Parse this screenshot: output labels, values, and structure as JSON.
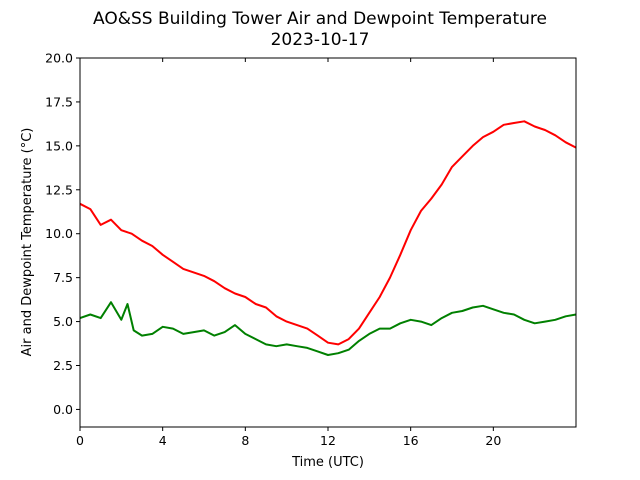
{
  "chart_data": {
    "type": "line",
    "title": "AO&SS Building Tower Air and Dewpoint Temperature",
    "subtitle": "2023-10-17",
    "xlabel": "Time (UTC)",
    "ylabel": "Air and Dewpoint Temperature (°C)",
    "xlim": [
      0,
      24
    ],
    "ylim": [
      -1,
      20
    ],
    "xticks": [
      0,
      4,
      8,
      12,
      16,
      20
    ],
    "yticks": [
      0.0,
      2.5,
      5.0,
      7.5,
      10.0,
      12.5,
      15.0,
      17.5,
      20.0
    ],
    "grid": false,
    "series": [
      {
        "color": "#ff0000",
        "x": [
          0,
          0.5,
          1.0,
          1.5,
          2.0,
          2.5,
          3.0,
          3.5,
          4.0,
          4.5,
          5.0,
          5.5,
          6.0,
          6.5,
          7.0,
          7.5,
          8.0,
          8.5,
          9.0,
          9.5,
          10.0,
          10.5,
          11.0,
          11.5,
          12.0,
          12.5,
          13.0,
          13.5,
          14.0,
          14.5,
          15.0,
          15.5,
          16.0,
          16.5,
          17.0,
          17.5,
          18.0,
          18.5,
          19.0,
          19.5,
          20.0,
          20.5,
          21.0,
          21.5,
          22.0,
          22.5,
          23.0,
          23.5,
          24.0
        ],
        "values": [
          11.7,
          11.4,
          10.5,
          10.8,
          10.2,
          10.0,
          9.6,
          9.3,
          8.8,
          8.4,
          8.0,
          7.8,
          7.6,
          7.3,
          6.9,
          6.6,
          6.4,
          6.0,
          5.8,
          5.3,
          5.0,
          4.8,
          4.6,
          4.2,
          3.8,
          3.7,
          4.0,
          4.6,
          5.5,
          6.4,
          7.5,
          8.8,
          10.2,
          11.3,
          12.0,
          12.8,
          13.8,
          14.4,
          15.0,
          15.5,
          15.8,
          16.2,
          16.3,
          16.4,
          16.1,
          15.9,
          15.6,
          15.2,
          14.9
        ]
      },
      {
        "color": "#008000",
        "x": [
          0,
          0.5,
          1.0,
          1.5,
          2.0,
          2.3,
          2.6,
          3.0,
          3.5,
          4.0,
          4.5,
          5.0,
          5.5,
          6.0,
          6.5,
          7.0,
          7.5,
          8.0,
          8.5,
          9.0,
          9.5,
          10.0,
          10.5,
          11.0,
          11.5,
          12.0,
          12.5,
          13.0,
          13.5,
          14.0,
          14.5,
          15.0,
          15.5,
          16.0,
          16.5,
          17.0,
          17.5,
          18.0,
          18.5,
          19.0,
          19.5,
          20.0,
          20.5,
          21.0,
          21.5,
          22.0,
          22.5,
          23.0,
          23.5,
          24.0
        ],
        "values": [
          5.2,
          5.4,
          5.2,
          6.1,
          5.1,
          6.0,
          4.5,
          4.2,
          4.3,
          4.7,
          4.6,
          4.3,
          4.4,
          4.5,
          4.2,
          4.4,
          4.8,
          4.3,
          4.0,
          3.7,
          3.6,
          3.7,
          3.6,
          3.5,
          3.3,
          3.1,
          3.2,
          3.4,
          3.9,
          4.3,
          4.6,
          4.6,
          4.9,
          5.1,
          5.0,
          4.8,
          5.2,
          5.5,
          5.6,
          5.8,
          5.9,
          5.7,
          5.5,
          5.4,
          5.1,
          4.9,
          5.0,
          5.1,
          5.3,
          5.4
        ]
      }
    ]
  }
}
